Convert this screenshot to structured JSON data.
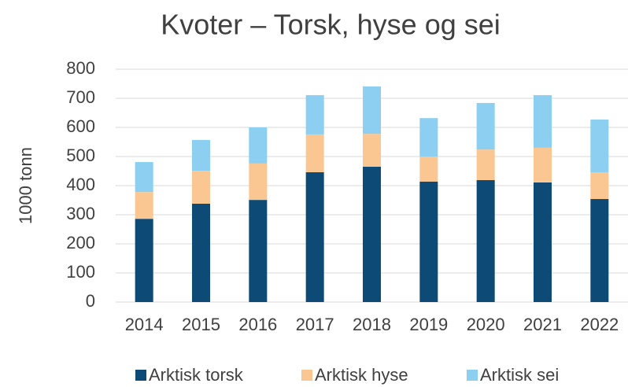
{
  "chart_data": {
    "type": "stacked_bar",
    "title": "Kvoter – Torsk, hyse og sei",
    "y_label": "1000 tonn",
    "categories": [
      "2014",
      "2015",
      "2016",
      "2017",
      "2018",
      "2019",
      "2020",
      "2021",
      "2022"
    ],
    "series": [
      {
        "name": "Arktisk torsk",
        "color": "#0d4a75",
        "values": [
          286,
          338,
          351,
          446,
          465,
          414,
          419,
          411,
          354
        ]
      },
      {
        "name": "Arktisk hyse",
        "color": "#fac793",
        "values": [
          92,
          113,
          125,
          130,
          113,
          86,
          105,
          119,
          92
        ]
      },
      {
        "name": "Arktisk sei",
        "color": "#8dcff0",
        "values": [
          103,
          106,
          124,
          135,
          163,
          132,
          160,
          181,
          181
        ]
      }
    ],
    "ylim": [
      0,
      800
    ],
    "yticks": [
      0,
      100,
      200,
      300,
      400,
      500,
      600,
      700,
      800
    ],
    "grid": true,
    "legend": "bottom"
  }
}
